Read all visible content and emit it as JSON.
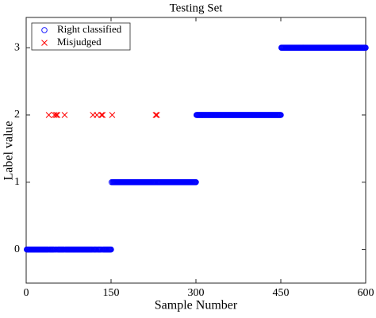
{
  "chart_data": {
    "type": "scatter",
    "title": "Testing Set",
    "x_label": "Sample Number",
    "y_label": "Label value",
    "xlim": [
      0,
      600
    ],
    "ylim": [
      -0.5,
      3.45
    ],
    "xticks": [
      0,
      150,
      300,
      450,
      600
    ],
    "yticks": [
      0,
      1,
      2,
      3
    ],
    "grid": false,
    "legend": "upper left",
    "series": [
      {
        "name": "Right classified",
        "color": "#0000ff",
        "marker": "circle",
        "x": [
          1,
          2,
          3,
          4,
          5,
          6,
          7,
          8,
          9,
          10,
          11,
          12,
          13,
          14,
          15,
          16,
          17,
          18,
          19,
          20,
          21,
          22,
          23,
          24,
          25,
          26,
          27,
          28,
          29,
          30,
          31,
          32,
          33,
          34,
          35,
          36,
          37,
          38,
          39,
          41,
          42,
          43,
          44,
          45,
          46,
          47,
          48,
          49,
          51,
          52,
          54,
          56,
          57,
          58,
          59,
          60,
          61,
          62,
          63,
          64,
          65,
          66,
          67,
          69,
          70,
          71,
          72,
          73,
          74,
          75,
          76,
          77,
          78,
          79,
          80,
          81,
          82,
          83,
          84,
          85,
          86,
          87,
          88,
          89,
          90,
          91,
          92,
          93,
          94,
          95,
          96,
          97,
          98,
          99,
          100,
          101,
          102,
          103,
          104,
          105,
          106,
          107,
          108,
          109,
          110,
          111,
          112,
          113,
          114,
          115,
          116,
          117,
          119,
          120,
          121,
          122,
          123,
          124,
          126,
          127,
          128,
          129,
          130,
          131,
          132,
          134,
          136,
          137,
          138,
          139,
          140,
          141,
          142,
          143,
          144,
          145,
          146,
          147,
          148,
          149,
          150,
          151,
          153,
          154,
          155,
          156,
          157,
          158,
          159,
          160,
          161,
          162,
          163,
          164,
          165,
          166,
          167,
          168,
          169,
          170,
          171,
          172,
          173,
          174,
          175,
          176,
          177,
          178,
          179,
          180,
          181,
          182,
          183,
          184,
          185,
          186,
          187,
          188,
          189,
          190,
          191,
          192,
          193,
          194,
          195,
          196,
          197,
          198,
          199,
          200,
          201,
          202,
          203,
          204,
          205,
          206,
          207,
          208,
          209,
          210,
          211,
          212,
          213,
          214,
          215,
          216,
          217,
          218,
          219,
          220,
          221,
          222,
          223,
          224,
          225,
          226,
          227,
          228,
          230,
          232,
          233,
          234,
          235,
          236,
          237,
          238,
          239,
          240,
          241,
          242,
          243,
          244,
          245,
          246,
          247,
          248,
          249,
          250,
          251,
          252,
          253,
          254,
          255,
          256,
          257,
          258,
          259,
          260,
          261,
          262,
          263,
          264,
          265,
          266,
          267,
          268,
          269,
          270,
          271,
          272,
          273,
          274,
          275,
          276,
          277,
          278,
          279,
          280,
          281,
          282,
          283,
          284,
          285,
          286,
          287,
          288,
          289,
          290,
          291,
          292,
          293,
          294,
          295,
          296,
          297,
          298,
          299,
          300,
          301,
          302,
          303,
          304,
          305,
          306,
          307,
          308,
          309,
          310,
          311,
          312,
          313,
          314,
          315,
          316,
          317,
          318,
          319,
          320,
          321,
          322,
          323,
          324,
          325,
          326,
          327,
          328,
          329,
          330,
          331,
          332,
          333,
          334,
          335,
          336,
          337,
          338,
          339,
          340,
          341,
          342,
          343,
          344,
          345,
          346,
          347,
          348,
          349,
          350,
          351,
          352,
          353,
          354,
          355,
          356,
          357,
          358,
          359,
          360,
          361,
          362,
          363,
          364,
          365,
          366,
          367,
          368,
          369,
          370,
          371,
          372,
          373,
          374,
          375,
          376,
          377,
          378,
          379,
          380,
          381,
          382,
          383,
          384,
          385,
          386,
          387,
          388,
          389,
          390,
          391,
          392,
          393,
          394,
          395,
          396,
          397,
          398,
          399,
          400,
          401,
          402,
          403,
          404,
          405,
          406,
          407,
          408,
          409,
          410,
          411,
          412,
          413,
          414,
          415,
          416,
          417,
          418,
          419,
          420,
          421,
          422,
          423,
          424,
          425,
          426,
          427,
          428,
          429,
          430,
          431,
          432,
          433,
          434,
          435,
          436,
          437,
          438,
          439,
          440,
          441,
          442,
          443,
          444,
          445,
          446,
          447,
          448,
          449,
          450,
          451,
          452,
          453,
          454,
          455,
          456,
          457,
          458,
          459,
          460,
          461,
          462,
          463,
          464,
          465,
          466,
          467,
          468,
          469,
          470,
          471,
          472,
          473,
          474,
          475,
          476,
          477,
          478,
          479,
          480,
          481,
          482,
          483,
          484,
          485,
          486,
          487,
          488,
          489,
          490,
          491,
          492,
          493,
          494,
          495,
          496,
          497,
          498,
          499,
          500,
          501,
          502,
          503,
          504,
          505,
          506,
          507,
          508,
          509,
          510,
          511,
          512,
          513,
          514,
          515,
          516,
          517,
          518,
          519,
          520,
          521,
          522,
          523,
          524,
          525,
          526,
          527,
          528,
          529,
          530,
          531,
          532,
          533,
          534,
          535,
          536,
          537,
          538,
          539,
          540,
          541,
          542,
          543,
          544,
          545,
          546,
          547,
          548,
          549,
          550,
          551,
          552,
          553,
          554,
          555,
          556,
          557,
          558,
          559,
          560,
          561,
          562,
          563,
          564,
          565,
          566,
          567,
          568,
          569,
          570,
          571,
          572,
          573,
          574,
          575,
          576,
          577,
          578,
          579,
          580,
          581,
          582,
          583,
          584,
          585,
          586,
          587,
          588,
          589,
          590,
          591,
          592,
          593,
          594,
          595,
          596,
          597,
          598,
          599,
          600
        ],
        "values": [
          0,
          0,
          0,
          0,
          0,
          0,
          0,
          0,
          0,
          0,
          0,
          0,
          0,
          0,
          0,
          0,
          0,
          0,
          0,
          0,
          0,
          0,
          0,
          0,
          0,
          0,
          0,
          0,
          0,
          0,
          0,
          0,
          0,
          0,
          0,
          0,
          0,
          0,
          0,
          0,
          0,
          0,
          0,
          0,
          0,
          0,
          0,
          0,
          0,
          0,
          0,
          0,
          0,
          0,
          0,
          0,
          0,
          0,
          0,
          0,
          0,
          0,
          0,
          0,
          0,
          0,
          0,
          0,
          0,
          0,
          0,
          0,
          0,
          0,
          0,
          0,
          0,
          0,
          0,
          0,
          0,
          0,
          0,
          0,
          0,
          0,
          0,
          0,
          0,
          0,
          0,
          0,
          0,
          0,
          0,
          0,
          0,
          0,
          0,
          0,
          0,
          0,
          0,
          0,
          0,
          0,
          0,
          0,
          0,
          0,
          0,
          0,
          0,
          0,
          0,
          0,
          0,
          0,
          0,
          0,
          0,
          0,
          0,
          0,
          0,
          0,
          0,
          0,
          0,
          0,
          0,
          0,
          0,
          0,
          0,
          0,
          0,
          0,
          0,
          0,
          0,
          1,
          1,
          1,
          1,
          1,
          1,
          1,
          1,
          1,
          1,
          1,
          1,
          1,
          1,
          1,
          1,
          1,
          1,
          1,
          1,
          1,
          1,
          1,
          1,
          1,
          1,
          1,
          1,
          1,
          1,
          1,
          1,
          1,
          1,
          1,
          1,
          1,
          1,
          1,
          1,
          1,
          1,
          1,
          1,
          1,
          1,
          1,
          1,
          1,
          1,
          1,
          1,
          1,
          1,
          1,
          1,
          1,
          1,
          1,
          1,
          1,
          1,
          1,
          1,
          1,
          1,
          1,
          1,
          1,
          1,
          1,
          1,
          1,
          1,
          1,
          1,
          1,
          1,
          1,
          1,
          1,
          1,
          1,
          1,
          1,
          1,
          1,
          1,
          1,
          1,
          1,
          1,
          1,
          1,
          1,
          1,
          1,
          1,
          1,
          1,
          1,
          1,
          1,
          1,
          1,
          1,
          1,
          1,
          1,
          1,
          1,
          1,
          1,
          1,
          1,
          1,
          1,
          1,
          1,
          1,
          1,
          1,
          1,
          1,
          1,
          1,
          1,
          1,
          1,
          1,
          1,
          1,
          1,
          1,
          1,
          1,
          1,
          1,
          1,
          1,
          1,
          1,
          1,
          1,
          1,
          1,
          1,
          2,
          2,
          2,
          2,
          2,
          2,
          2,
          2,
          2,
          2,
          2,
          2,
          2,
          2,
          2,
          2,
          2,
          2,
          2,
          2,
          2,
          2,
          2,
          2,
          2,
          2,
          2,
          2,
          2,
          2,
          2,
          2,
          2,
          2,
          2,
          2,
          2,
          2,
          2,
          2,
          2,
          2,
          2,
          2,
          2,
          2,
          2,
          2,
          2,
          2,
          2,
          2,
          2,
          2,
          2,
          2,
          2,
          2,
          2,
          2,
          2,
          2,
          2,
          2,
          2,
          2,
          2,
          2,
          2,
          2,
          2,
          2,
          2,
          2,
          2,
          2,
          2,
          2,
          2,
          2,
          2,
          2,
          2,
          2,
          2,
          2,
          2,
          2,
          2,
          2,
          2,
          2,
          2,
          2,
          2,
          2,
          2,
          2,
          2,
          2,
          2,
          2,
          2,
          2,
          2,
          2,
          2,
          2,
          2,
          2,
          2,
          2,
          2,
          2,
          2,
          2,
          2,
          2,
          2,
          2,
          2,
          2,
          2,
          2,
          2,
          2,
          2,
          2,
          2,
          2,
          2,
          2,
          2,
          2,
          2,
          2,
          2,
          2,
          2,
          2,
          2,
          2,
          2,
          2,
          2,
          2,
          2,
          2,
          2,
          2,
          3,
          3,
          3,
          3,
          3,
          3,
          3,
          3,
          3,
          3,
          3,
          3,
          3,
          3,
          3,
          3,
          3,
          3,
          3,
          3,
          3,
          3,
          3,
          3,
          3,
          3,
          3,
          3,
          3,
          3,
          3,
          3,
          3,
          3,
          3,
          3,
          3,
          3,
          3,
          3,
          3,
          3,
          3,
          3,
          3,
          3,
          3,
          3,
          3,
          3,
          3,
          3,
          3,
          3,
          3,
          3,
          3,
          3,
          3,
          3,
          3,
          3,
          3,
          3,
          3,
          3,
          3,
          3,
          3,
          3,
          3,
          3,
          3,
          3,
          3,
          3,
          3,
          3,
          3,
          3,
          3,
          3,
          3,
          3,
          3,
          3,
          3,
          3,
          3,
          3,
          3,
          3,
          3,
          3,
          3,
          3,
          3,
          3,
          3,
          3,
          3,
          3,
          3,
          3,
          3,
          3,
          3,
          3,
          3,
          3,
          3,
          3,
          3,
          3,
          3,
          3,
          3,
          3,
          3,
          3,
          3,
          3,
          3,
          3,
          3,
          3,
          3,
          3,
          3,
          3,
          3,
          3,
          3,
          3,
          3,
          3,
          3,
          3,
          3,
          3,
          3,
          3,
          3,
          3,
          3,
          3,
          3,
          3,
          3,
          3
        ]
      },
      {
        "name": "Misjudged",
        "color": "#ff0000",
        "marker": "x",
        "x": [
          40,
          50,
          53,
          55,
          68,
          118,
          125,
          133,
          135,
          152,
          229,
          231
        ],
        "values": [
          2,
          2,
          2,
          2,
          2,
          2,
          2,
          2,
          2,
          2,
          2,
          2
        ]
      }
    ]
  }
}
